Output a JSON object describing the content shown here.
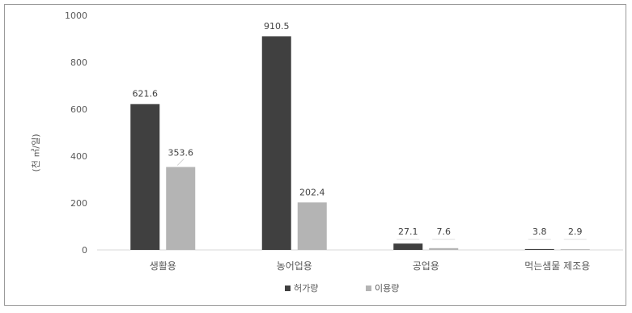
{
  "chart_data": {
    "type": "bar",
    "title": "",
    "xlabel": "",
    "ylabel": "(천 ㎥/일)",
    "ylim": [
      0,
      1000
    ],
    "yticks": [
      0,
      200,
      400,
      600,
      800,
      1000
    ],
    "grid": false,
    "legend_position": "bottom",
    "categories": [
      "생활용",
      "농어업용",
      "공업용",
      "먹는샘물 제조용"
    ],
    "series": [
      {
        "name": "허가량",
        "color": "#404040",
        "values": [
          621.6,
          910.5,
          27.1,
          3.8
        ],
        "labels": [
          "621.6",
          "910.5",
          "27.1",
          "3.8"
        ]
      },
      {
        "name": "이용량",
        "color": "#b4b4b4",
        "values": [
          353.6,
          202.4,
          7.6,
          2.9
        ],
        "labels": [
          "353.6",
          "202.4",
          "7.6",
          "2.9"
        ]
      }
    ]
  }
}
